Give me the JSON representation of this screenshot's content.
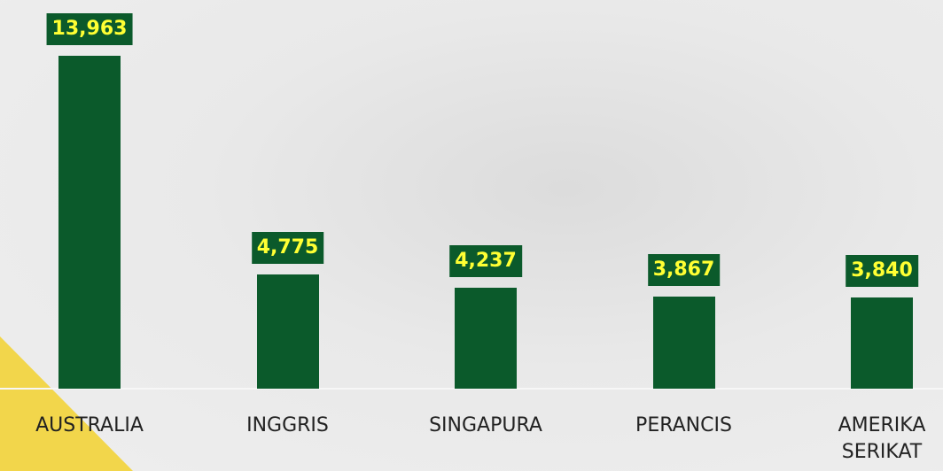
{
  "chart_data": {
    "type": "bar",
    "categories": [
      "AUSTRALIA",
      "INGGRIS",
      "SINGAPURA",
      "PERANCIS",
      "AMERIKA SERIKAT"
    ],
    "values": [
      13963,
      4775,
      4237,
      3867,
      3840
    ],
    "value_labels": [
      "13,963",
      "4,775",
      "4,237",
      "3,867",
      "3,840"
    ],
    "color": "#0b5a2b"
  }
}
